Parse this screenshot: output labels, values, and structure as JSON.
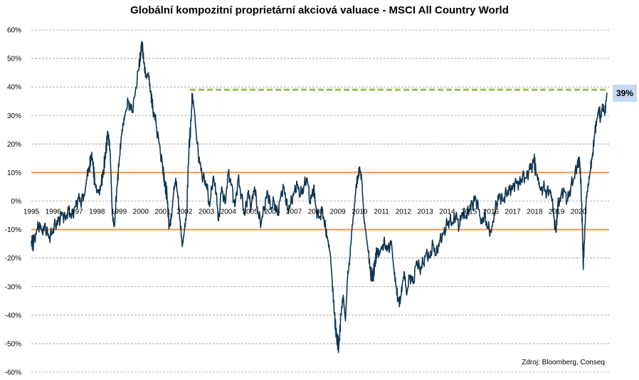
{
  "title": "Globální kompozitní proprietární akciová valuace - MSCI All Country World",
  "source": "Zdroj: Bloomberg, Conseq",
  "callout": "39%",
  "colors": {
    "series": "#0f3552",
    "band": "#f79646",
    "reference": "#9bbb59",
    "grid": "#9a9a9a",
    "callout_bg": "#c5d9f1"
  },
  "chart_data": {
    "type": "line",
    "title": "Globální kompozitní proprietární akciová valuace - MSCI All Country World",
    "xlabel": "",
    "ylabel": "",
    "x_ticks": [
      "1995",
      "1996",
      "1997",
      "1998",
      "1999",
      "2000",
      "2001",
      "2002",
      "2003",
      "2004",
      "2005",
      "2006",
      "2007",
      "2008",
      "2009",
      "2010",
      "2011",
      "2012",
      "2013",
      "2014",
      "2015",
      "2016",
      "2017",
      "2018",
      "2019",
      "2020"
    ],
    "y_ticks": [
      "60%",
      "50%",
      "40%",
      "30%",
      "20%",
      "10%",
      "0%",
      "-10%",
      "-20%",
      "-30%",
      "-40%",
      "-50%",
      "-60%"
    ],
    "xlim": [
      1995.0,
      2021.4
    ],
    "ylim": [
      -60,
      60
    ],
    "grid": "horizontal dashed",
    "bands": [
      10,
      -10
    ],
    "reference_line": {
      "value": 39,
      "from": 2002.25,
      "to": 2021.3,
      "label": "39%"
    },
    "series": [
      {
        "points": [
          [
            1995.0,
            -14
          ],
          [
            1995.1,
            -15
          ],
          [
            1995.25,
            -10
          ],
          [
            1995.4,
            -8
          ],
          [
            1995.5,
            -11
          ],
          [
            1995.65,
            -9
          ],
          [
            1995.8,
            -13
          ],
          [
            1995.95,
            -11
          ],
          [
            1996.1,
            -8
          ],
          [
            1996.25,
            -7
          ],
          [
            1996.4,
            -4
          ],
          [
            1996.55,
            -6
          ],
          [
            1996.7,
            -3
          ],
          [
            1996.85,
            -5
          ],
          [
            1997.0,
            -2
          ],
          [
            1997.15,
            1
          ],
          [
            1997.3,
            0
          ],
          [
            1997.45,
            3
          ],
          [
            1997.55,
            9
          ],
          [
            1997.65,
            12
          ],
          [
            1997.75,
            16
          ],
          [
            1997.82,
            13
          ],
          [
            1997.9,
            6
          ],
          [
            1998.0,
            4
          ],
          [
            1998.1,
            3
          ],
          [
            1998.2,
            6
          ],
          [
            1998.3,
            11
          ],
          [
            1998.4,
            17
          ],
          [
            1998.5,
            24
          ],
          [
            1998.6,
            18
          ],
          [
            1998.7,
            -5
          ],
          [
            1998.8,
            -9
          ],
          [
            1998.9,
            4
          ],
          [
            1999.0,
            12
          ],
          [
            1999.1,
            22
          ],
          [
            1999.2,
            27
          ],
          [
            1999.3,
            31
          ],
          [
            1999.45,
            35
          ],
          [
            1999.6,
            31
          ],
          [
            1999.75,
            38
          ],
          [
            1999.9,
            46
          ],
          [
            2000.0,
            52
          ],
          [
            2000.05,
            56
          ],
          [
            2000.15,
            48
          ],
          [
            2000.25,
            43
          ],
          [
            2000.35,
            45
          ],
          [
            2000.45,
            38
          ],
          [
            2000.55,
            33
          ],
          [
            2000.7,
            27
          ],
          [
            2000.85,
            20
          ],
          [
            2001.0,
            12
          ],
          [
            2001.1,
            6
          ],
          [
            2001.2,
            2
          ],
          [
            2001.3,
            -9
          ],
          [
            2001.4,
            -6
          ],
          [
            2001.5,
            3
          ],
          [
            2001.6,
            8
          ],
          [
            2001.7,
            1
          ],
          [
            2001.8,
            -7
          ],
          [
            2001.9,
            -16
          ],
          [
            2002.0,
            -10
          ],
          [
            2002.1,
            -4
          ],
          [
            2002.2,
            18
          ],
          [
            2002.3,
            28
          ],
          [
            2002.35,
            37
          ],
          [
            2002.45,
            32
          ],
          [
            2002.55,
            22
          ],
          [
            2002.7,
            13
          ],
          [
            2002.85,
            8
          ],
          [
            2003.0,
            6
          ],
          [
            2003.15,
            -2
          ],
          [
            2003.3,
            8
          ],
          [
            2003.45,
            3
          ],
          [
            2003.55,
            -7
          ],
          [
            2003.7,
            5
          ],
          [
            2003.85,
            -1
          ],
          [
            2004.0,
            10
          ],
          [
            2004.15,
            6
          ],
          [
            2004.3,
            -2
          ],
          [
            2004.45,
            8
          ],
          [
            2004.6,
            2
          ],
          [
            2004.75,
            -5
          ],
          [
            2004.9,
            3
          ],
          [
            2005.05,
            -2
          ],
          [
            2005.2,
            5
          ],
          [
            2005.35,
            -4
          ],
          [
            2005.5,
            -8
          ],
          [
            2005.65,
            -2
          ],
          [
            2005.8,
            3
          ],
          [
            2005.95,
            -3
          ],
          [
            2006.1,
            0
          ],
          [
            2006.25,
            -5
          ],
          [
            2006.4,
            2
          ],
          [
            2006.55,
            5
          ],
          [
            2006.7,
            -3
          ],
          [
            2006.85,
            -1
          ],
          [
            2007.0,
            3
          ],
          [
            2007.15,
            6
          ],
          [
            2007.3,
            2
          ],
          [
            2007.45,
            5
          ],
          [
            2007.6,
            8
          ],
          [
            2007.75,
            -1
          ],
          [
            2007.9,
            5
          ],
          [
            2008.0,
            -2
          ],
          [
            2008.15,
            -6
          ],
          [
            2008.3,
            -3
          ],
          [
            2008.45,
            -10
          ],
          [
            2008.55,
            -14
          ],
          [
            2008.65,
            -18
          ],
          [
            2008.75,
            -28
          ],
          [
            2008.85,
            -40
          ],
          [
            2008.95,
            -48
          ],
          [
            2009.05,
            -51
          ],
          [
            2009.15,
            -40
          ],
          [
            2009.25,
            -33
          ],
          [
            2009.35,
            -42
          ],
          [
            2009.45,
            -27
          ],
          [
            2009.55,
            -20
          ],
          [
            2009.65,
            -10
          ],
          [
            2009.75,
            -3
          ],
          [
            2009.85,
            6
          ],
          [
            2009.95,
            9
          ],
          [
            2010.0,
            12
          ],
          [
            2010.1,
            7
          ],
          [
            2010.2,
            -6
          ],
          [
            2010.3,
            -12
          ],
          [
            2010.4,
            -18
          ],
          [
            2010.5,
            -25
          ],
          [
            2010.6,
            -27
          ],
          [
            2010.7,
            -22
          ],
          [
            2010.8,
            -17
          ],
          [
            2010.9,
            -19
          ],
          [
            2011.0,
            -16
          ],
          [
            2011.15,
            -15
          ],
          [
            2011.3,
            -17
          ],
          [
            2011.45,
            -14
          ],
          [
            2011.55,
            -23
          ],
          [
            2011.65,
            -29
          ],
          [
            2011.75,
            -34
          ],
          [
            2011.85,
            -36
          ],
          [
            2011.95,
            -29
          ],
          [
            2012.05,
            -25
          ],
          [
            2012.15,
            -33
          ],
          [
            2012.3,
            -26
          ],
          [
            2012.45,
            -29
          ],
          [
            2012.6,
            -21
          ],
          [
            2012.75,
            -24
          ],
          [
            2012.9,
            -22
          ],
          [
            2013.05,
            -18
          ],
          [
            2013.2,
            -20
          ],
          [
            2013.35,
            -15
          ],
          [
            2013.5,
            -19
          ],
          [
            2013.65,
            -14
          ],
          [
            2013.8,
            -12
          ],
          [
            2013.95,
            -9
          ],
          [
            2014.1,
            -7
          ],
          [
            2014.25,
            -8
          ],
          [
            2014.4,
            -5
          ],
          [
            2014.55,
            -9
          ],
          [
            2014.7,
            -4
          ],
          [
            2014.85,
            -6
          ],
          [
            2015.0,
            -3
          ],
          [
            2015.15,
            -1
          ],
          [
            2015.3,
            1
          ],
          [
            2015.45,
            -3
          ],
          [
            2015.55,
            -8
          ],
          [
            2015.7,
            -5
          ],
          [
            2015.85,
            -9
          ],
          [
            2016.0,
            -11
          ],
          [
            2016.1,
            -7
          ],
          [
            2016.25,
            -1
          ],
          [
            2016.4,
            2
          ],
          [
            2016.55,
            0
          ],
          [
            2016.7,
            3
          ],
          [
            2016.85,
            4
          ],
          [
            2017.0,
            5
          ],
          [
            2017.15,
            7
          ],
          [
            2017.3,
            6
          ],
          [
            2017.45,
            9
          ],
          [
            2017.6,
            8
          ],
          [
            2017.75,
            11
          ],
          [
            2017.9,
            13
          ],
          [
            2017.97,
            15
          ],
          [
            2018.05,
            10
          ],
          [
            2018.15,
            8
          ],
          [
            2018.25,
            4
          ],
          [
            2018.4,
            5
          ],
          [
            2018.55,
            3
          ],
          [
            2018.7,
            4
          ],
          [
            2018.8,
            0
          ],
          [
            2018.9,
            -7
          ],
          [
            2018.97,
            -11
          ],
          [
            2019.05,
            -2
          ],
          [
            2019.2,
            2
          ],
          [
            2019.35,
            4
          ],
          [
            2019.5,
            0
          ],
          [
            2019.65,
            5
          ],
          [
            2019.8,
            8
          ],
          [
            2019.95,
            13
          ],
          [
            2020.05,
            14
          ],
          [
            2020.12,
            5
          ],
          [
            2020.18,
            -10
          ],
          [
            2020.22,
            -24
          ],
          [
            2020.28,
            -12
          ],
          [
            2020.35,
            0
          ],
          [
            2020.45,
            6
          ],
          [
            2020.55,
            11
          ],
          [
            2020.65,
            17
          ],
          [
            2020.75,
            24
          ],
          [
            2020.85,
            29
          ],
          [
            2020.95,
            33
          ],
          [
            2021.0,
            28
          ],
          [
            2021.1,
            34
          ],
          [
            2021.2,
            30
          ],
          [
            2021.3,
            38
          ]
        ]
      }
    ]
  }
}
